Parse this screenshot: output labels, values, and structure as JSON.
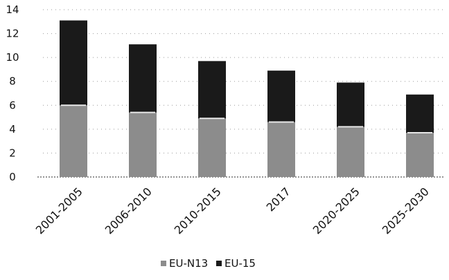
{
  "chart_data": {
    "type": "bar",
    "stacked": true,
    "categories": [
      "2001-2005",
      "2006-2010",
      "2010-2015",
      "2017",
      "2020-2025",
      "2025-2030"
    ],
    "series": [
      {
        "name": "EU-N13",
        "values": [
          6.0,
          5.4,
          4.9,
          4.6,
          4.2,
          3.7
        ],
        "color": "#8c8c8c"
      },
      {
        "name": "EU-15",
        "values": [
          7.1,
          5.7,
          4.8,
          4.3,
          3.7,
          3.2
        ],
        "color": "#1a1a1a"
      }
    ],
    "ylim": [
      0,
      14
    ],
    "yticks": [
      0,
      2,
      4,
      6,
      8,
      10,
      12,
      14
    ],
    "grid": true,
    "legend_position": "bottom",
    "title": "",
    "xlabel": "",
    "ylabel": ""
  }
}
